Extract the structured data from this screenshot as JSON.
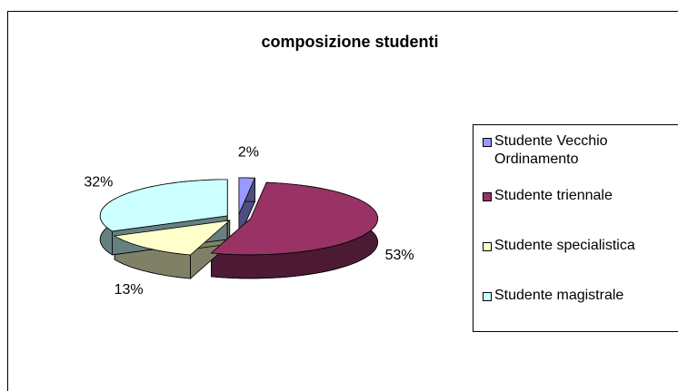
{
  "chart_data": {
    "type": "pie",
    "title": "composizione studenti",
    "categories": [
      "Studente Vecchio Ordinamento",
      "Studente triennale",
      "Studente specialistica",
      "Studente magistrale"
    ],
    "values": [
      2,
      53,
      13,
      32
    ],
    "value_labels": [
      "2%",
      "53%",
      "13%",
      "32%"
    ],
    "colors": [
      "#9999ff",
      "#993366",
      "#ffffcc",
      "#ccffff"
    ],
    "legend": "right"
  }
}
